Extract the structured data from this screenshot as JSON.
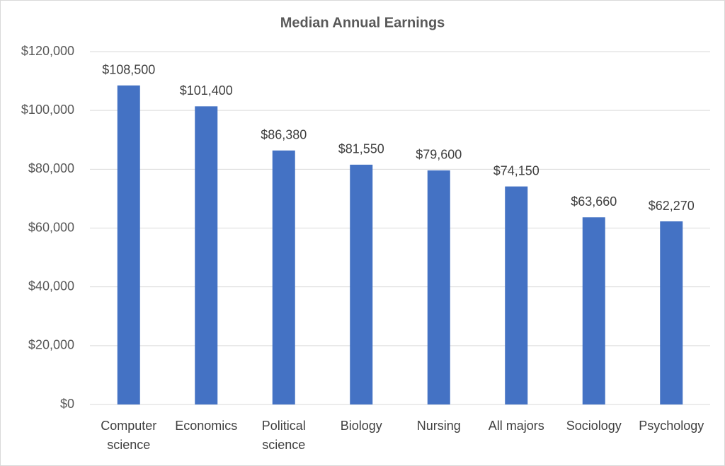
{
  "chart_data": {
    "type": "bar",
    "title": "Median Annual Earnings",
    "categories": [
      "Computer science",
      "Economics",
      "Political science",
      "Biology",
      "Nursing",
      "All majors",
      "Sociology",
      "Psychology"
    ],
    "values": [
      108500,
      101400,
      86380,
      81550,
      79600,
      74150,
      63660,
      62270
    ],
    "value_labels": [
      "$108,500",
      "$101,400",
      "$86,380",
      "$81,550",
      "$79,600",
      "$74,150",
      "$63,660",
      "$62,270"
    ],
    "color": "#4472c4",
    "ylim": [
      0,
      120000
    ],
    "yticks": [
      {
        "value": 0,
        "label": "$0"
      },
      {
        "value": 20000,
        "label": "$20,000"
      },
      {
        "value": 40000,
        "label": "$40,000"
      },
      {
        "value": 60000,
        "label": "$60,000"
      },
      {
        "value": 80000,
        "label": "$80,000"
      },
      {
        "value": 100000,
        "label": "$100,000"
      },
      {
        "value": 120000,
        "label": "$120,000"
      }
    ],
    "grid": true
  }
}
